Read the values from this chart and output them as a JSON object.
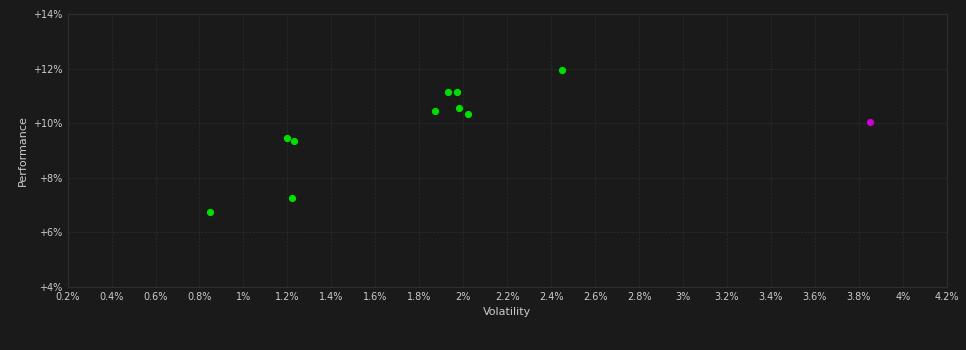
{
  "background_color": "#1a1a1a",
  "plot_bg_color": "#1a1a1a",
  "grid_color": "#2e2e2e",
  "text_color": "#cccccc",
  "xlabel": "Volatility",
  "ylabel": "Performance",
  "xlim": [
    0.002,
    0.042
  ],
  "ylim": [
    0.04,
    0.14
  ],
  "xticks": [
    0.002,
    0.004,
    0.006,
    0.008,
    0.01,
    0.012,
    0.014,
    0.016,
    0.018,
    0.02,
    0.022,
    0.024,
    0.026,
    0.028,
    0.03,
    0.032,
    0.034,
    0.036,
    0.038,
    0.04,
    0.042
  ],
  "yticks": [
    0.04,
    0.06,
    0.08,
    0.1,
    0.12,
    0.14
  ],
  "green_points": [
    [
      0.0085,
      0.0675
    ],
    [
      0.0122,
      0.0725
    ],
    [
      0.012,
      0.0945
    ],
    [
      0.0123,
      0.0935
    ],
    [
      0.0187,
      0.1045
    ],
    [
      0.0193,
      0.1115
    ],
    [
      0.0197,
      0.1115
    ],
    [
      0.0198,
      0.1055
    ],
    [
      0.0202,
      0.1035
    ],
    [
      0.0245,
      0.1195
    ]
  ],
  "magenta_points": [
    [
      0.0385,
      0.1005
    ]
  ],
  "dot_size": 18
}
